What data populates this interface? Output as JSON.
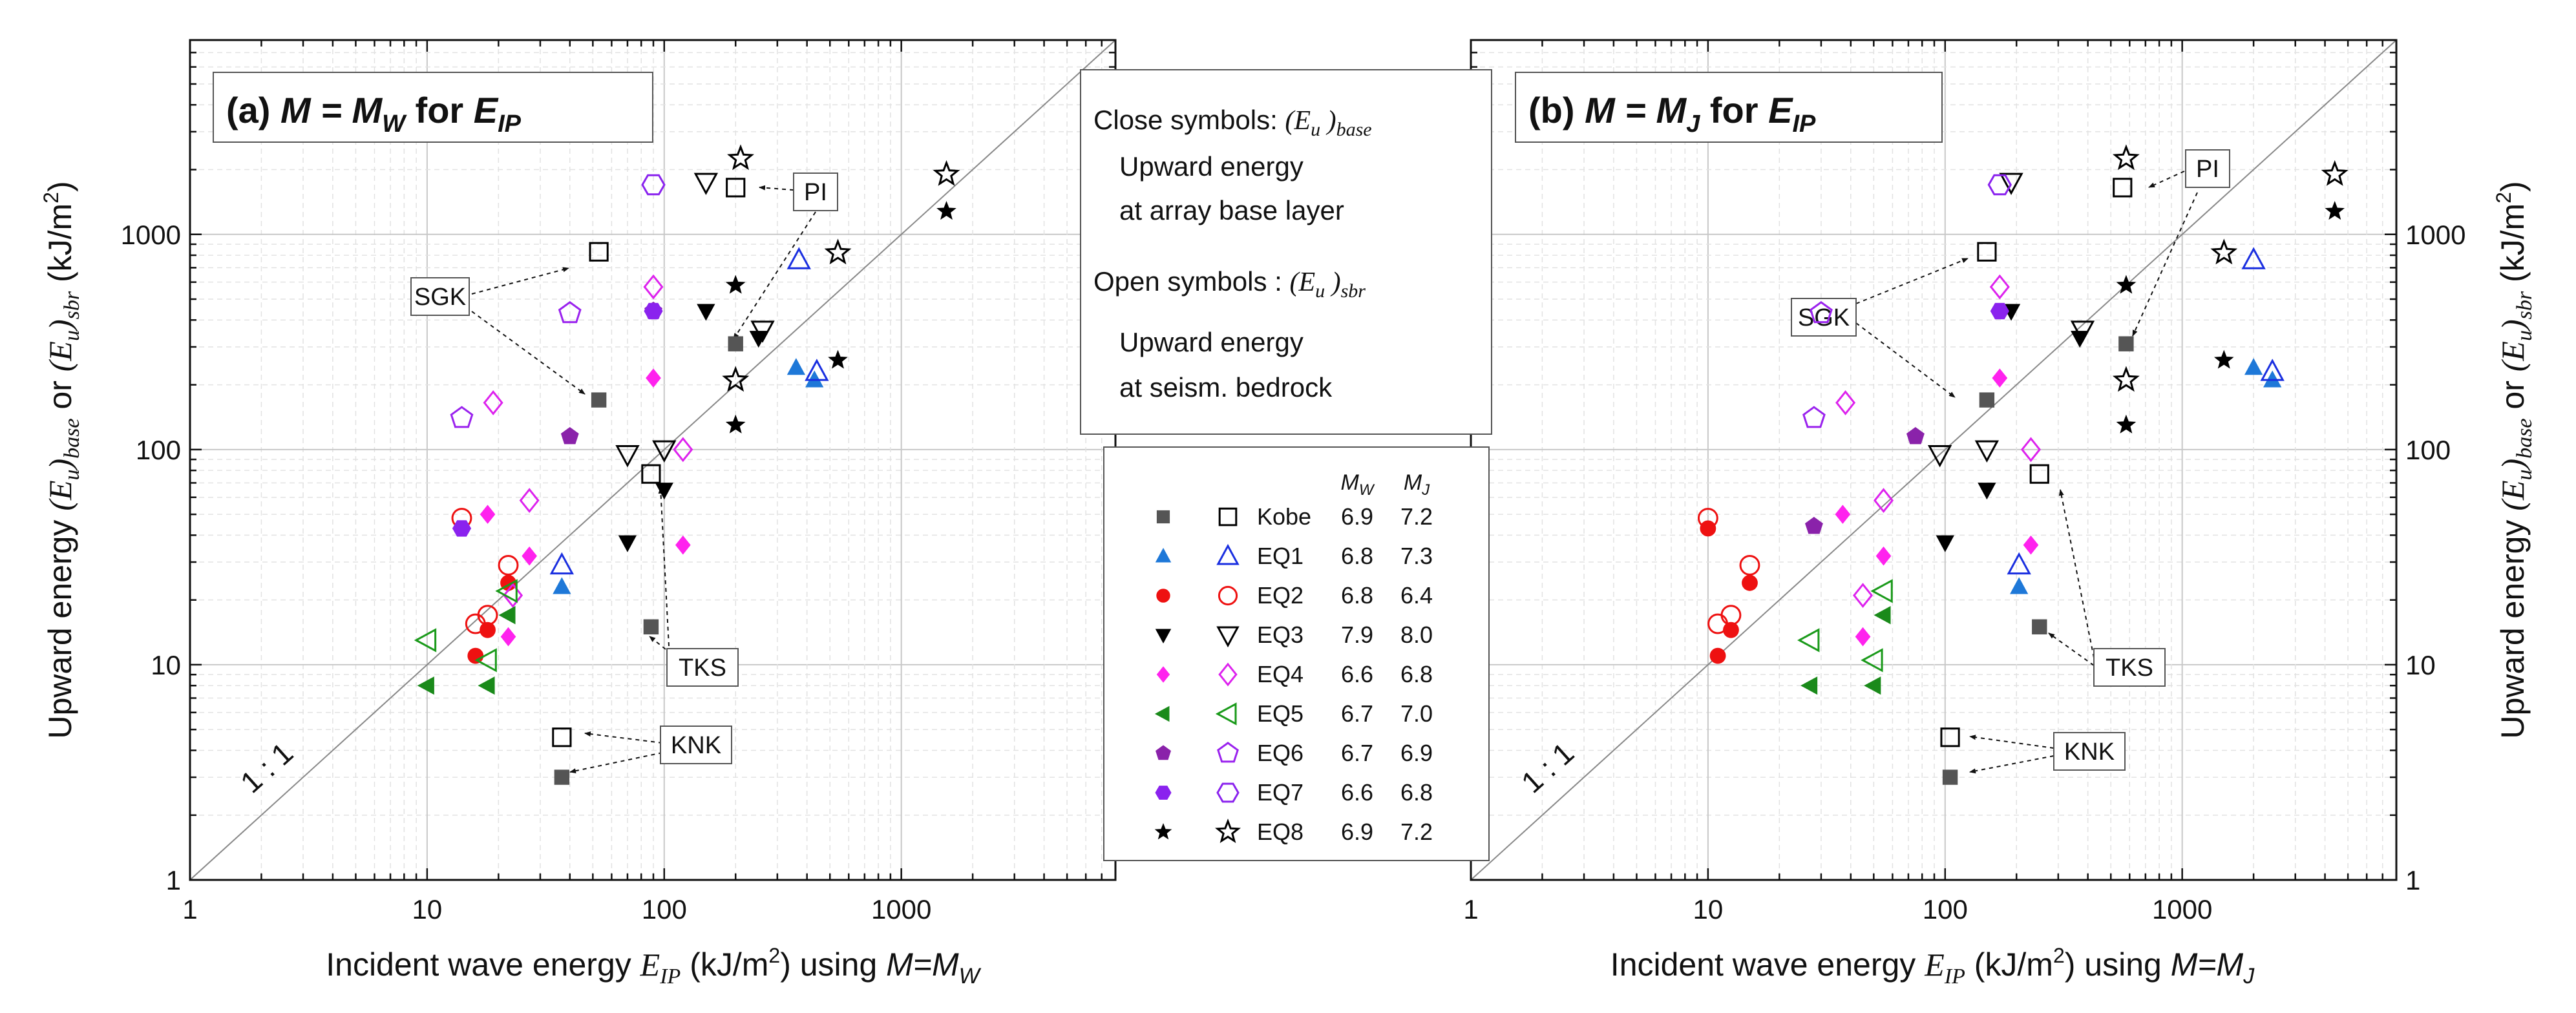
{
  "panels": [
    {
      "id": "a",
      "title_prefix": "(a) ",
      "title_math": "M = M",
      "title_sub": "W",
      "title_mid": " for ",
      "title_e": "E",
      "title_e_sub": "IP",
      "xlabel_pre": "Incident wave energy ",
      "xlabel_sym": "E",
      "xlabel_sub": "IP",
      "xlabel_post": " (kJ/m",
      "xlabel_post2": ") using ",
      "xlabel_m": "M=M",
      "xlabel_m_sub": "W"
    },
    {
      "id": "b",
      "title_prefix": "(b) ",
      "title_math": "M = M",
      "title_sub": "J",
      "title_mid": " for ",
      "title_e": "E",
      "title_e_sub": "IP",
      "xlabel_pre": "Incident wave energy ",
      "xlabel_sym": "E",
      "xlabel_sub": "IP",
      "xlabel_post": " (kJ/m",
      "xlabel_post2": ") using ",
      "xlabel_m": "M=M",
      "xlabel_m_sub": "J"
    }
  ],
  "ylabel": {
    "pre": "Upward energy ",
    "base_sym": "(E",
    "base_u": "u",
    "base_close": ")",
    "base_sub": "base",
    "or": " or ",
    "sbr_sym": "(E",
    "sbr_u": "u",
    "sbr_close": ")",
    "sbr_sub": "sbr",
    "unit": " (kJ/m",
    "unit2": ")"
  },
  "xticks": [
    "1",
    "10",
    "100",
    "1000"
  ],
  "yticks": [
    "1",
    "10",
    "100",
    "1000"
  ],
  "sup2": "2",
  "one_to_one": "1 : 1",
  "info_box": {
    "close_label": "Close symbols: ",
    "close_sym": "(E",
    "close_u": "u",
    "close_rest": " )",
    "close_sub": "base",
    "close_desc1": "Upward energy",
    "close_desc2": "at array base layer",
    "open_label": "Open symbols : ",
    "open_sym": "(E",
    "open_u": "u",
    "open_rest": " )",
    "open_sub": "sbr",
    "open_desc1": "Upward energy",
    "open_desc2": "at seism. bedrock"
  },
  "legend": {
    "header_mw": "M",
    "header_mw_sub": "W",
    "header_mj": "M",
    "header_mj_sub": "J",
    "rows": [
      {
        "name": "Kobe",
        "mw": "6.9",
        "mj": "7.2",
        "marker": "square",
        "color": "#555555",
        "open": "#000000"
      },
      {
        "name": "EQ1",
        "mw": "6.8",
        "mj": "7.3",
        "marker": "triangle",
        "color": "#1e78d8",
        "open": "#1a2fe0"
      },
      {
        "name": "EQ2",
        "mw": "6.8",
        "mj": "6.4",
        "marker": "circle",
        "color": "#ee1111",
        "open": "#ee1111"
      },
      {
        "name": "EQ3",
        "mw": "7.9",
        "mj": "8.0",
        "marker": "tridown",
        "color": "#000000",
        "open": "#000000"
      },
      {
        "name": "EQ4",
        "mw": "6.6",
        "mj": "6.8",
        "marker": "diamond",
        "color": "#ff22ee",
        "open": "#dd22ee"
      },
      {
        "name": "EQ5",
        "mw": "6.7",
        "mj": "7.0",
        "marker": "trileft",
        "color": "#1a8a1a",
        "open": "#1a9a1a"
      },
      {
        "name": "EQ6",
        "mw": "6.7",
        "mj": "6.9",
        "marker": "pentagon",
        "color": "#8a22aa",
        "open": "#9a22ee"
      },
      {
        "name": "EQ7",
        "mw": "6.6",
        "mj": "6.8",
        "marker": "hexagon",
        "color": "#8a22ee",
        "open": "#8a22ee"
      },
      {
        "name": "EQ8",
        "mw": "6.9",
        "mj": "7.2",
        "marker": "star",
        "color": "#000000",
        "open": "#000000"
      }
    ]
  },
  "chart_data": [
    {
      "panel": "a",
      "type": "scatter",
      "xscale": "log",
      "yscale": "log",
      "xlim": [
        1,
        8000
      ],
      "ylim": [
        1,
        8000
      ],
      "reference_line": "1:1",
      "series": [
        {
          "name": "Kobe",
          "closed": [
            [
              37,
              3.0
            ],
            [
              88,
              15
            ],
            [
              53,
              170
            ],
            [
              200,
              310
            ]
          ],
          "open": [
            [
              37,
              4.6
            ],
            [
              88,
              77
            ],
            [
              53,
              830
            ],
            [
              200,
              1650
            ]
          ]
        },
        {
          "name": "EQ1",
          "closed": [
            [
              37,
              23
            ],
            [
              360,
              240
            ],
            [
              430,
              210
            ]
          ],
          "open": [
            [
              37,
              29
            ],
            [
              370,
              760
            ],
            [
              440,
              230
            ]
          ]
        },
        {
          "name": "EQ2",
          "closed": [
            [
              14,
              43
            ],
            [
              16,
              11
            ],
            [
              18,
              14.5
            ],
            [
              22,
              24
            ]
          ],
          "open": [
            [
              14,
              48
            ],
            [
              16,
              15.5
            ],
            [
              18,
              17
            ],
            [
              22,
              29
            ]
          ]
        },
        {
          "name": "EQ3",
          "closed": [
            [
              70,
              37
            ],
            [
              100,
              65
            ],
            [
              150,
              440
            ],
            [
              250,
              330
            ]
          ],
          "open": [
            [
              70,
              95
            ],
            [
              100,
              100
            ],
            [
              150,
              1750
            ],
            [
              260,
              360
            ]
          ]
        },
        {
          "name": "EQ4",
          "closed": [
            [
              18,
              50
            ],
            [
              22,
              13.5
            ],
            [
              27,
              32
            ],
            [
              90,
              215
            ],
            [
              120,
              36
            ]
          ],
          "open": [
            [
              19,
              165
            ],
            [
              23,
              21
            ],
            [
              27,
              58
            ],
            [
              90,
              570
            ],
            [
              120,
              100
            ]
          ]
        },
        {
          "name": "EQ5",
          "closed": [
            [
              10,
              8
            ],
            [
              18,
              8
            ],
            [
              22,
              17
            ]
          ],
          "open": [
            [
              10,
              13
            ],
            [
              18,
              10.5
            ],
            [
              22,
              22
            ]
          ]
        },
        {
          "name": "EQ6",
          "closed": [
            [
              40,
              115
            ],
            [
              90,
              440
            ]
          ],
          "open": [
            [
              14,
              140
            ],
            [
              40,
              430
            ]
          ]
        },
        {
          "name": "EQ7",
          "closed": [
            [
              14,
              43
            ],
            [
              90,
              440
            ]
          ],
          "open": [
            [
              90,
              1700
            ]
          ]
        },
        {
          "name": "EQ8",
          "closed": [
            [
              200,
              130
            ],
            [
              200,
              580
            ],
            [
              540,
              260
            ],
            [
              1550,
              1280
            ]
          ],
          "open": [
            [
              200,
              210
            ],
            [
              210,
              2250
            ],
            [
              540,
              820
            ],
            [
              1550,
              1900
            ]
          ]
        }
      ],
      "annotations": [
        "SGK",
        "PI",
        "TKS",
        "KNK"
      ]
    },
    {
      "panel": "b",
      "type": "scatter",
      "xscale": "log",
      "yscale": "log",
      "xlim": [
        1,
        8000
      ],
      "ylim": [
        1,
        8000
      ],
      "reference_line": "1:1",
      "series": [
        {
          "name": "Kobe",
          "closed": [
            [
              105,
              3.0
            ],
            [
              250,
              15
            ],
            [
              150,
              170
            ],
            [
              580,
              310
            ]
          ],
          "open": [
            [
              105,
              4.6
            ],
            [
              250,
              77
            ],
            [
              150,
              830
            ],
            [
              560,
              1650
            ]
          ]
        },
        {
          "name": "EQ1",
          "closed": [
            [
              205,
              23
            ],
            [
              2000,
              240
            ],
            [
              2400,
              210
            ]
          ],
          "open": [
            [
              205,
              29
            ],
            [
              2000,
              760
            ],
            [
              2400,
              230
            ]
          ]
        },
        {
          "name": "EQ2",
          "closed": [
            [
              10,
              43
            ],
            [
              11,
              11
            ],
            [
              12.5,
              14.5
            ],
            [
              15,
              24
            ]
          ],
          "open": [
            [
              10,
              48
            ],
            [
              11,
              15.5
            ],
            [
              12.5,
              17
            ],
            [
              15,
              29
            ]
          ]
        },
        {
          "name": "EQ3",
          "closed": [
            [
              100,
              37
            ],
            [
              150,
              65
            ],
            [
              190,
              440
            ],
            [
              370,
              330
            ]
          ],
          "open": [
            [
              95,
              95
            ],
            [
              150,
              100
            ],
            [
              190,
              1750
            ],
            [
              380,
              360
            ]
          ]
        },
        {
          "name": "EQ4",
          "closed": [
            [
              37,
              50
            ],
            [
              45,
              13.5
            ],
            [
              55,
              32
            ],
            [
              170,
              215
            ],
            [
              230,
              36
            ]
          ],
          "open": [
            [
              38,
              165
            ],
            [
              45,
              21
            ],
            [
              55,
              58
            ],
            [
              170,
              570
            ],
            [
              230,
              100
            ]
          ]
        },
        {
          "name": "EQ5",
          "closed": [
            [
              27,
              8
            ],
            [
              50,
              8
            ],
            [
              55,
              17
            ]
          ],
          "open": [
            [
              27,
              13
            ],
            [
              50,
              10.5
            ],
            [
              55,
              22
            ]
          ]
        },
        {
          "name": "EQ6",
          "closed": [
            [
              28,
              44
            ],
            [
              75,
              115
            ]
          ],
          "open": [
            [
              28,
              140
            ],
            [
              30,
              430
            ]
          ]
        },
        {
          "name": "EQ7",
          "closed": [
            [
              170,
              440
            ]
          ],
          "open": [
            [
              170,
              1700
            ]
          ]
        },
        {
          "name": "EQ8",
          "closed": [
            [
              580,
              130
            ],
            [
              580,
              580
            ],
            [
              1500,
              260
            ],
            [
              4400,
              1280
            ]
          ],
          "open": [
            [
              580,
              210
            ],
            [
              580,
              2250
            ],
            [
              1500,
              820
            ],
            [
              4400,
              1900
            ]
          ]
        }
      ],
      "annotations": [
        "SGK",
        "PI",
        "TKS",
        "KNK"
      ]
    }
  ]
}
